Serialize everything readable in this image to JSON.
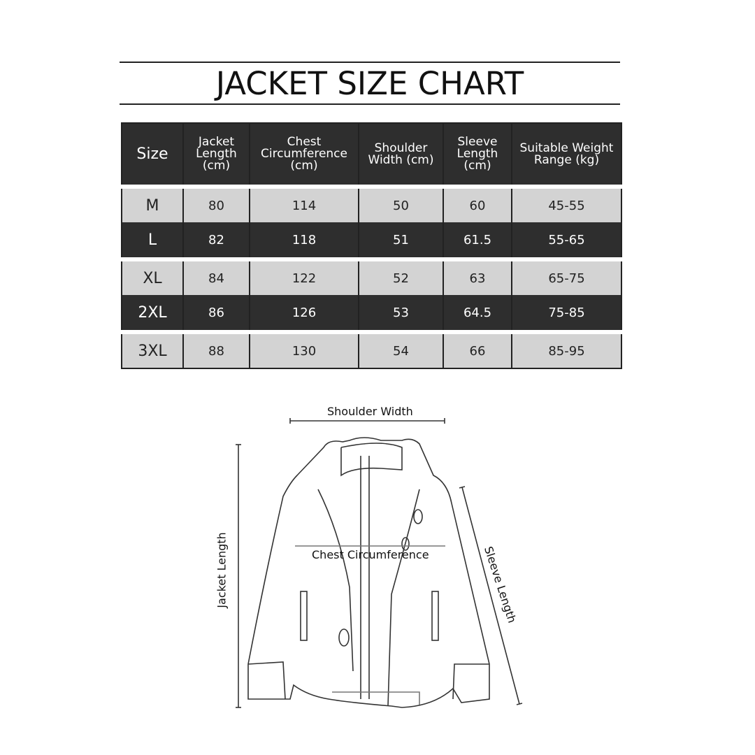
{
  "title": "JACKET SIZE CHART",
  "table": {
    "headers": [
      "Size",
      "Jacket Length (cm)",
      "Chest Circumference (cm)",
      "Shoulder Width (cm)",
      "Sleeve Length (cm)",
      "Suitable Weight Range (kg)"
    ],
    "rows": [
      [
        "M",
        "80",
        "114",
        "50",
        "60",
        "45-55"
      ],
      [
        "L",
        "82",
        "118",
        "51",
        "61.5",
        "55-65"
      ],
      [
        "XL",
        "84",
        "122",
        "52",
        "63",
        "65-75"
      ],
      [
        "2XL",
        "86",
        "126",
        "53",
        "64.5",
        "75-85"
      ],
      [
        "3XL",
        "88",
        "130",
        "54",
        "66",
        "85-95"
      ]
    ]
  },
  "diagram": {
    "shoulder_width": "Shoulder Width",
    "chest_circumference": "Chest Circumference",
    "jacket_length": "Jacket Length",
    "sleeve_length": "Sleeve Length"
  },
  "colors": {
    "dark_row": "#2e2e2e",
    "light_row": "#d3d3d3"
  }
}
